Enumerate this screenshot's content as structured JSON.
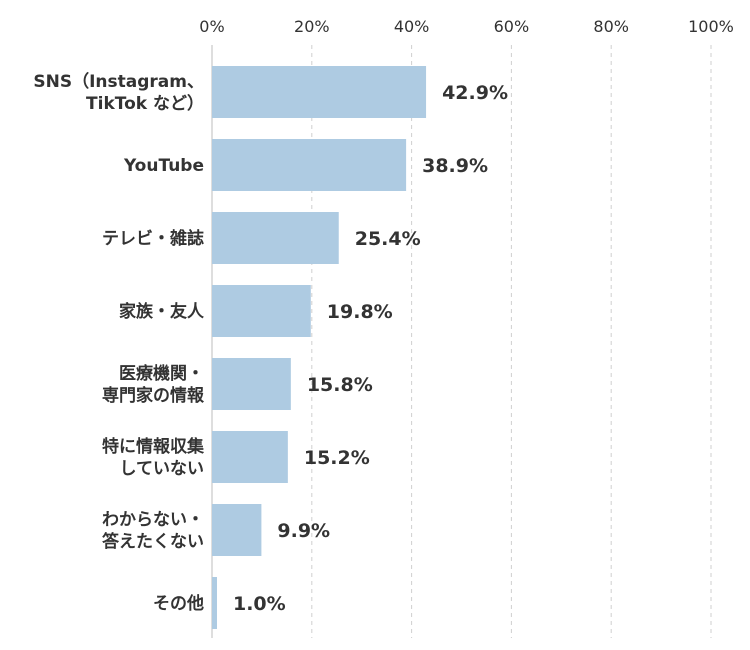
{
  "chart_data": {
    "type": "bar",
    "orientation": "horizontal",
    "title": "",
    "xlabel": "",
    "ylabel": "",
    "xlim": [
      0,
      100
    ],
    "x_ticks": [
      "0%",
      "20%",
      "40%",
      "60%",
      "80%",
      "100%"
    ],
    "x_tick_values": [
      0,
      20,
      40,
      60,
      80,
      100
    ],
    "x_axis_position": "top",
    "grid": true,
    "legend": "none",
    "categories": [
      [
        "SNS（Instagram、",
        "TikTok など）"
      ],
      [
        "YouTube"
      ],
      [
        "テレビ・雑誌"
      ],
      [
        "家族・友人"
      ],
      [
        "医療機関・",
        "専門家の情報"
      ],
      [
        "特に情報収集",
        "していない"
      ],
      [
        "わからない・",
        "答えたくない"
      ],
      [
        "その他"
      ]
    ],
    "values": [
      42.9,
      38.9,
      25.4,
      19.8,
      15.8,
      15.2,
      9.9,
      1.0
    ],
    "value_labels": [
      "42.9%",
      "38.9%",
      "25.4%",
      "19.8%",
      "15.8%",
      "15.2%",
      "9.9%",
      "1.0%"
    ],
    "bar_color": "#aecbe2"
  }
}
